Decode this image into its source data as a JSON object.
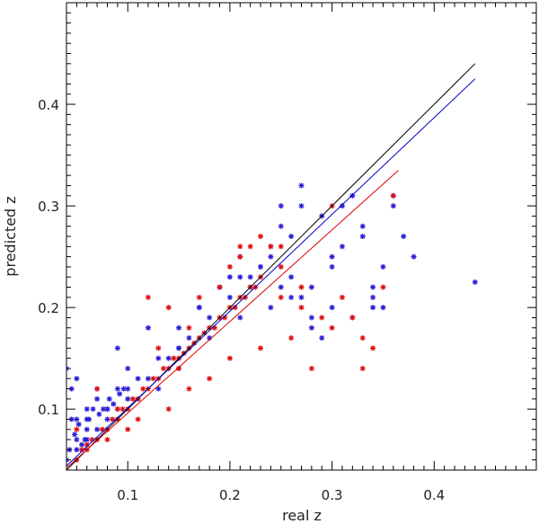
{
  "chart_data": {
    "type": "scatter",
    "title": "",
    "xlabel": "real z",
    "ylabel": "predicted z",
    "xlim": [
      0.04,
      0.5
    ],
    "ylim": [
      0.04,
      0.5
    ],
    "xticks": [
      0.1,
      0.2,
      0.3,
      0.4
    ],
    "xtick_labels": [
      "0.1",
      "0.2",
      "0.3",
      "0.4"
    ],
    "yticks": [
      0.1,
      0.2,
      0.3,
      0.4
    ],
    "ytick_labels": [
      "0.1",
      "0.2",
      "0.3",
      "0.4"
    ],
    "grid": false,
    "legend": "none",
    "lines": [
      {
        "color": "#000000",
        "x": [
          0.04,
          0.44
        ],
        "y": [
          0.04,
          0.44
        ]
      },
      {
        "color": "#0000cc",
        "x": [
          0.04,
          0.44
        ],
        "y": [
          0.044,
          0.425
        ]
      },
      {
        "color": "#dd0000",
        "x": [
          0.04,
          0.365
        ],
        "y": [
          0.042,
          0.335
        ]
      }
    ],
    "series": [
      {
        "color": "#2a1fd6",
        "x": [
          0.05,
          0.055,
          0.06,
          0.07,
          0.08,
          0.09,
          0.1,
          0.12,
          0.14,
          0.15,
          0.16,
          0.18,
          0.2,
          0.22,
          0.24,
          0.26,
          0.05,
          0.06,
          0.07,
          0.08,
          0.09,
          0.1,
          0.11,
          0.13,
          0.15,
          0.17,
          0.19,
          0.21,
          0.23,
          0.25,
          0.27,
          0.29,
          0.31,
          0.33,
          0.35,
          0.37,
          0.04,
          0.045,
          0.05,
          0.06,
          0.07,
          0.09,
          0.12,
          0.15,
          0.18,
          0.21,
          0.24,
          0.26,
          0.28,
          0.3,
          0.32,
          0.34,
          0.36,
          0.38,
          0.2,
          0.22,
          0.24,
          0.25,
          0.27,
          0.26,
          0.3,
          0.28,
          0.32,
          0.35,
          0.34,
          0.36,
          0.44,
          0.3,
          0.31,
          0.33,
          0.34,
          0.28,
          0.29,
          0.27,
          0.25,
          0.23,
          0.21,
          0.19,
          0.17,
          0.15,
          0.13,
          0.11,
          0.1,
          0.08,
          0.06,
          0.05,
          0.045,
          0.04,
          0.043,
          0.048,
          0.052,
          0.058,
          0.062,
          0.066,
          0.072,
          0.076,
          0.082,
          0.086,
          0.092,
          0.096
        ],
        "y": [
          0.06,
          0.065,
          0.07,
          0.08,
          0.09,
          0.1,
          0.11,
          0.13,
          0.15,
          0.16,
          0.17,
          0.19,
          0.21,
          0.23,
          0.25,
          0.27,
          0.09,
          0.1,
          0.11,
          0.1,
          0.12,
          0.14,
          0.11,
          0.12,
          0.16,
          0.2,
          0.22,
          0.25,
          0.24,
          0.28,
          0.3,
          0.29,
          0.3,
          0.28,
          0.24,
          0.27,
          0.14,
          0.12,
          0.13,
          0.09,
          0.12,
          0.16,
          0.18,
          0.14,
          0.17,
          0.19,
          0.2,
          0.23,
          0.22,
          0.25,
          0.31,
          0.21,
          0.3,
          0.25,
          0.23,
          0.22,
          0.26,
          0.3,
          0.32,
          0.21,
          0.2,
          0.18,
          0.19,
          0.2,
          0.22,
          0.31,
          0.225,
          0.24,
          0.26,
          0.27,
          0.2,
          0.19,
          0.17,
          0.21,
          0.22,
          0.24,
          0.23,
          0.22,
          0.2,
          0.18,
          0.15,
          0.13,
          0.12,
          0.1,
          0.08,
          0.07,
          0.09,
          0.05,
          0.06,
          0.075,
          0.085,
          0.07,
          0.09,
          0.1,
          0.095,
          0.1,
          0.11,
          0.105,
          0.115,
          0.12
        ]
      },
      {
        "color": "#e01010",
        "x": [
          0.05,
          0.06,
          0.07,
          0.08,
          0.09,
          0.1,
          0.11,
          0.12,
          0.13,
          0.14,
          0.15,
          0.16,
          0.17,
          0.18,
          0.19,
          0.2,
          0.21,
          0.22,
          0.23,
          0.05,
          0.07,
          0.09,
          0.11,
          0.13,
          0.15,
          0.17,
          0.19,
          0.21,
          0.23,
          0.25,
          0.27,
          0.29,
          0.31,
          0.33,
          0.35,
          0.36,
          0.12,
          0.14,
          0.16,
          0.2,
          0.22,
          0.24,
          0.26,
          0.28,
          0.3,
          0.32,
          0.34,
          0.25,
          0.23,
          0.27,
          0.2,
          0.18,
          0.16,
          0.14,
          0.1,
          0.08,
          0.06,
          0.055,
          0.065,
          0.075,
          0.085,
          0.095,
          0.105,
          0.115,
          0.125,
          0.135,
          0.145,
          0.155,
          0.165,
          0.175,
          0.185,
          0.195,
          0.205,
          0.215,
          0.225,
          0.3,
          0.33,
          0.25,
          0.21
        ],
        "y": [
          0.05,
          0.06,
          0.07,
          0.08,
          0.09,
          0.1,
          0.11,
          0.12,
          0.13,
          0.14,
          0.15,
          0.16,
          0.17,
          0.18,
          0.19,
          0.2,
          0.21,
          0.22,
          0.23,
          0.08,
          0.12,
          0.1,
          0.09,
          0.16,
          0.14,
          0.21,
          0.22,
          0.25,
          0.27,
          0.24,
          0.22,
          0.19,
          0.21,
          0.17,
          0.22,
          0.31,
          0.21,
          0.2,
          0.18,
          0.24,
          0.26,
          0.26,
          0.17,
          0.14,
          0.18,
          0.19,
          0.16,
          0.21,
          0.16,
          0.2,
          0.15,
          0.13,
          0.12,
          0.1,
          0.08,
          0.07,
          0.065,
          0.06,
          0.07,
          0.08,
          0.09,
          0.1,
          0.11,
          0.12,
          0.13,
          0.14,
          0.15,
          0.155,
          0.165,
          0.175,
          0.18,
          0.19,
          0.2,
          0.21,
          0.22,
          0.3,
          0.14,
          0.26,
          0.26
        ]
      }
    ]
  }
}
